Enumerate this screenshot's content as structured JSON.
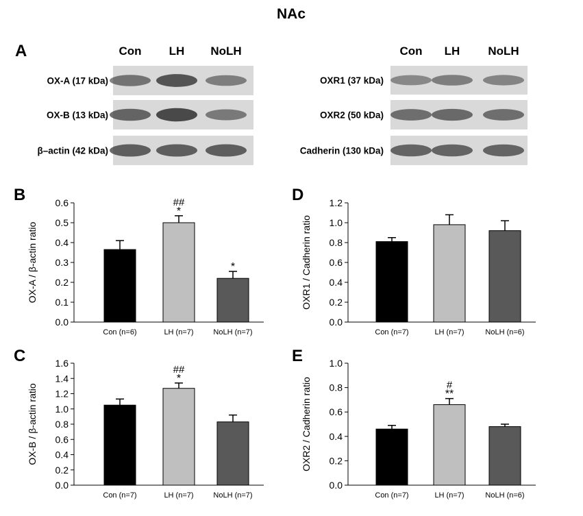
{
  "title": "NAc",
  "blots": {
    "left": {
      "panel_letter": "A",
      "lanes": [
        "Con",
        "LH",
        "NoLH"
      ],
      "rows": [
        {
          "label": "OX-A (17 kDa)",
          "intensity": [
            0.55,
            0.85,
            0.45
          ]
        },
        {
          "label": "OX-B (13 kDa)",
          "intensity": [
            0.7,
            0.95,
            0.5
          ]
        },
        {
          "label": "β–actin (42 kDa)",
          "intensity": [
            0.75,
            0.75,
            0.75
          ]
        }
      ]
    },
    "right": {
      "lanes": [
        "Con",
        "LH",
        "NoLH"
      ],
      "rows": [
        {
          "label": "OXR1 (37 kDa)",
          "intensity": [
            0.35,
            0.45,
            0.4
          ]
        },
        {
          "label": "OXR2 (50 kDa)",
          "intensity": [
            0.6,
            0.65,
            0.6
          ]
        },
        {
          "label": "Cadherin (130 kDa)",
          "intensity": [
            0.7,
            0.7,
            0.7
          ]
        }
      ]
    }
  },
  "colors": {
    "con": "#000000",
    "lh": "#bfbfbf",
    "nolh": "#595959",
    "band": "#2a2a2a",
    "blot_bg": "#d9d9d9"
  },
  "chart_data": [
    {
      "panel": "B",
      "type": "bar",
      "categories": [
        "Con (n=6)",
        "LH (n=7)",
        "NoLH (n=7)"
      ],
      "values": [
        0.365,
        0.5,
        0.22
      ],
      "errors": [
        0.045,
        0.035,
        0.035
      ],
      "annotations": [
        [
          "",
          ""
        ],
        [
          "##",
          "*"
        ],
        [
          "",
          "*"
        ]
      ],
      "ylabel": "OX-A / β-actin ratio",
      "ylim": [
        0,
        0.6
      ],
      "yticks": [
        "0.0",
        "0.1",
        "0.2",
        "0.3",
        "0.4",
        "0.5",
        "0.6"
      ]
    },
    {
      "panel": "D",
      "type": "bar",
      "categories": [
        "Con (n=7)",
        "LH (n=7)",
        "NoLH (n=6)"
      ],
      "values": [
        0.81,
        0.98,
        0.92
      ],
      "errors": [
        0.04,
        0.1,
        0.1
      ],
      "annotations": [
        [
          "",
          ""
        ],
        [
          "",
          ""
        ],
        [
          "",
          ""
        ]
      ],
      "ylabel": "OXR1 / Cadherin ratio",
      "ylim": [
        0,
        1.2
      ],
      "yticks": [
        "0.0",
        "0.2",
        "0.4",
        "0.6",
        "0.8",
        "1.0",
        "1.2"
      ]
    },
    {
      "panel": "C",
      "type": "bar",
      "categories": [
        "Con (n=7)",
        "LH (n=7)",
        "NoLH (n=7)"
      ],
      "values": [
        1.05,
        1.27,
        0.83
      ],
      "errors": [
        0.08,
        0.07,
        0.09
      ],
      "annotations": [
        [
          "",
          ""
        ],
        [
          "##",
          "*"
        ],
        [
          "",
          ""
        ]
      ],
      "ylabel": "OX-B / β-actin ratio",
      "ylim": [
        0,
        1.6
      ],
      "yticks": [
        "0.0",
        "0.2",
        "0.4",
        "0.6",
        "0.8",
        "1.0",
        "1.2",
        "1.4",
        "1.6"
      ]
    },
    {
      "panel": "E",
      "type": "bar",
      "categories": [
        "Con (n=7)",
        "LH (n=7)",
        "NoLH (n=6)"
      ],
      "values": [
        0.46,
        0.66,
        0.48
      ],
      "errors": [
        0.03,
        0.05,
        0.02
      ],
      "annotations": [
        [
          "",
          ""
        ],
        [
          "#",
          "**"
        ],
        [
          "",
          ""
        ]
      ],
      "ylabel": "OXR2 / Cadherin ratio",
      "ylim": [
        0,
        1.0
      ],
      "yticks": [
        "0.0",
        "0.2",
        "0.4",
        "0.6",
        "0.8",
        "1.0"
      ]
    }
  ]
}
